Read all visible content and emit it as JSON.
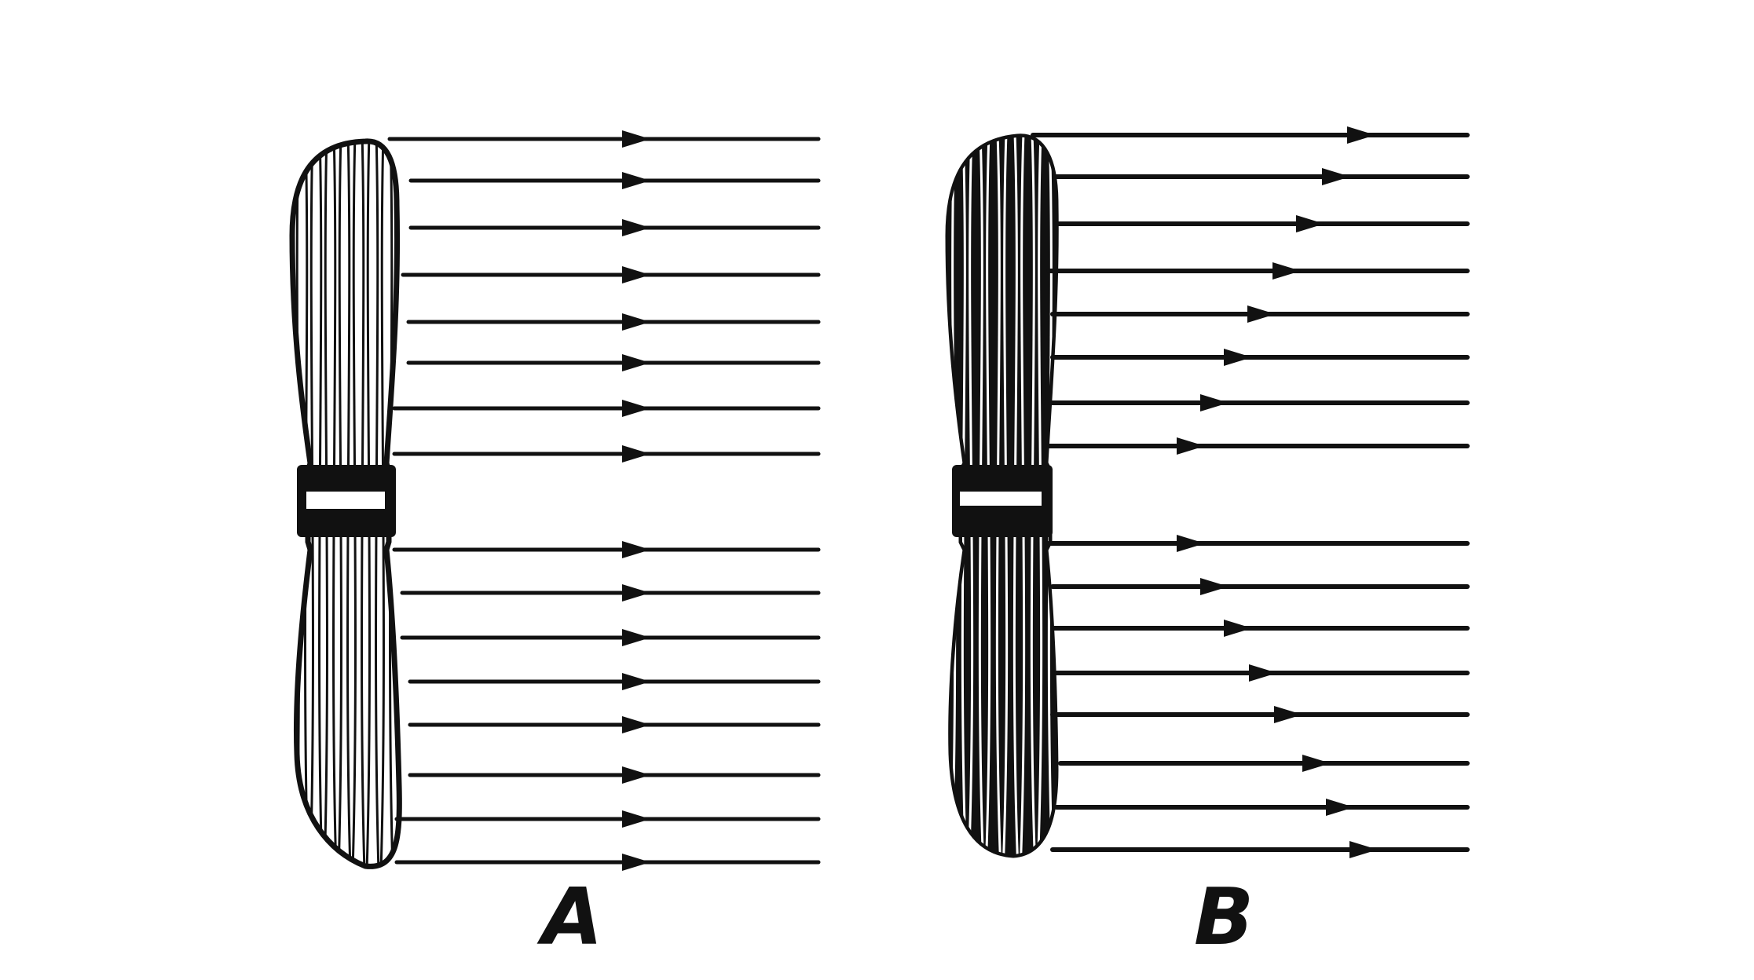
{
  "panels": [
    {
      "id": "A",
      "label": "A",
      "propeller_style": "light-hatched",
      "arrow_count": 16
    },
    {
      "id": "B",
      "label": "B",
      "propeller_style": "dark-bold",
      "arrow_count": 16
    }
  ],
  "colors": {
    "ink": "#111111",
    "background": "#ffffff"
  }
}
